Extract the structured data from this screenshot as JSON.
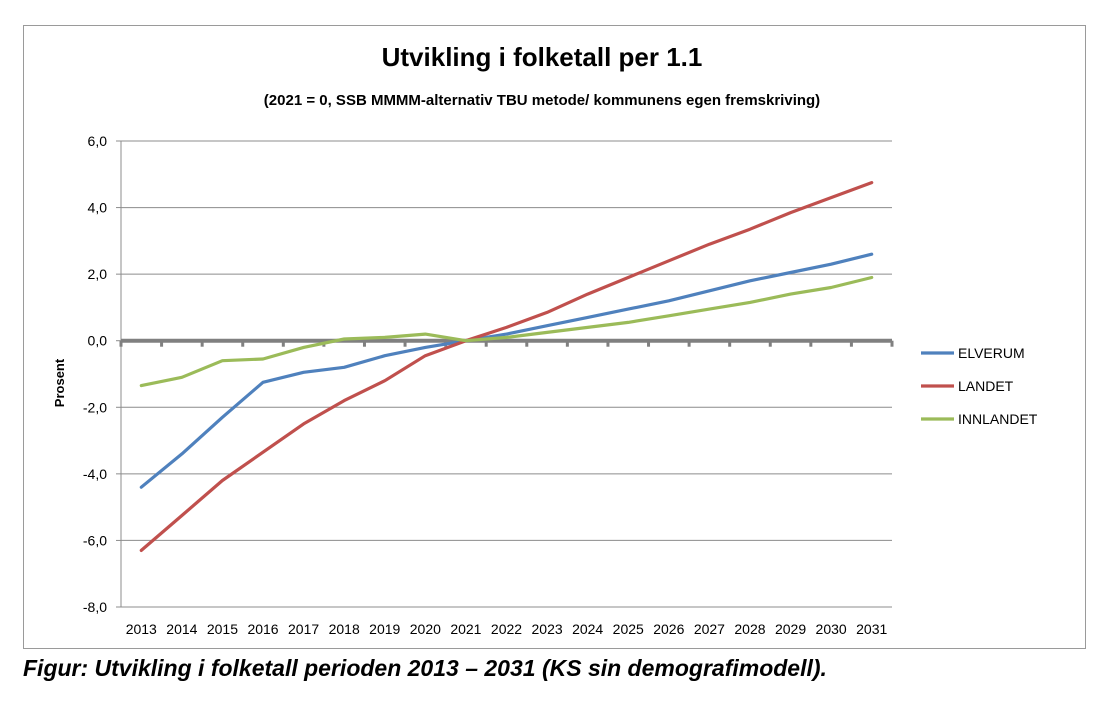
{
  "caption": "Figur: Utvikling i folketall perioden 2013 – 2031 (KS sin demografimodell).",
  "chart_data": {
    "type": "line",
    "title": "Utvikling i folketall per 1.1",
    "subtitle": "(2021 = 0, SSB MMMM-alternativ TBU metode/ kommunens egen fremskriving)",
    "xlabel": "",
    "ylabel": "Prosent",
    "ylim": [
      -8,
      6
    ],
    "ytick_labels": [
      "6,0",
      "4,0",
      "2,0",
      "0,0",
      "-2,0",
      "-4,0",
      "-6,0",
      "-8,0"
    ],
    "yticks": [
      6,
      4,
      2,
      0,
      -2,
      -4,
      -6,
      -8
    ],
    "categories": [
      "2013",
      "2014",
      "2015",
      "2016",
      "2017",
      "2018",
      "2019",
      "2020",
      "2021",
      "2022",
      "2023",
      "2024",
      "2025",
      "2026",
      "2027",
      "2028",
      "2029",
      "2030",
      "2031"
    ],
    "grid": true,
    "legend_position": "right",
    "series": [
      {
        "name": "ELVERUM",
        "color": "#4f81bd",
        "values": [
          -4.4,
          -3.4,
          -2.3,
          -1.25,
          -0.95,
          -0.8,
          -0.45,
          -0.2,
          0.0,
          0.2,
          0.45,
          0.7,
          0.95,
          1.2,
          1.5,
          1.8,
          2.05,
          2.3,
          2.6
        ]
      },
      {
        "name": "LANDET",
        "color": "#c0504d",
        "values": [
          -6.3,
          -5.25,
          -4.2,
          -3.35,
          -2.5,
          -1.8,
          -1.2,
          -0.45,
          0.0,
          0.4,
          0.85,
          1.4,
          1.9,
          2.4,
          2.9,
          3.35,
          3.85,
          4.3,
          4.75
        ]
      },
      {
        "name": "INNLANDET",
        "color": "#9bbb59",
        "values": [
          -1.35,
          -1.1,
          -0.6,
          -0.55,
          -0.2,
          0.05,
          0.1,
          0.2,
          0.0,
          0.1,
          0.25,
          0.4,
          0.55,
          0.75,
          0.95,
          1.15,
          1.4,
          1.6,
          1.9
        ]
      }
    ],
    "zero_line_color": "#808080"
  }
}
